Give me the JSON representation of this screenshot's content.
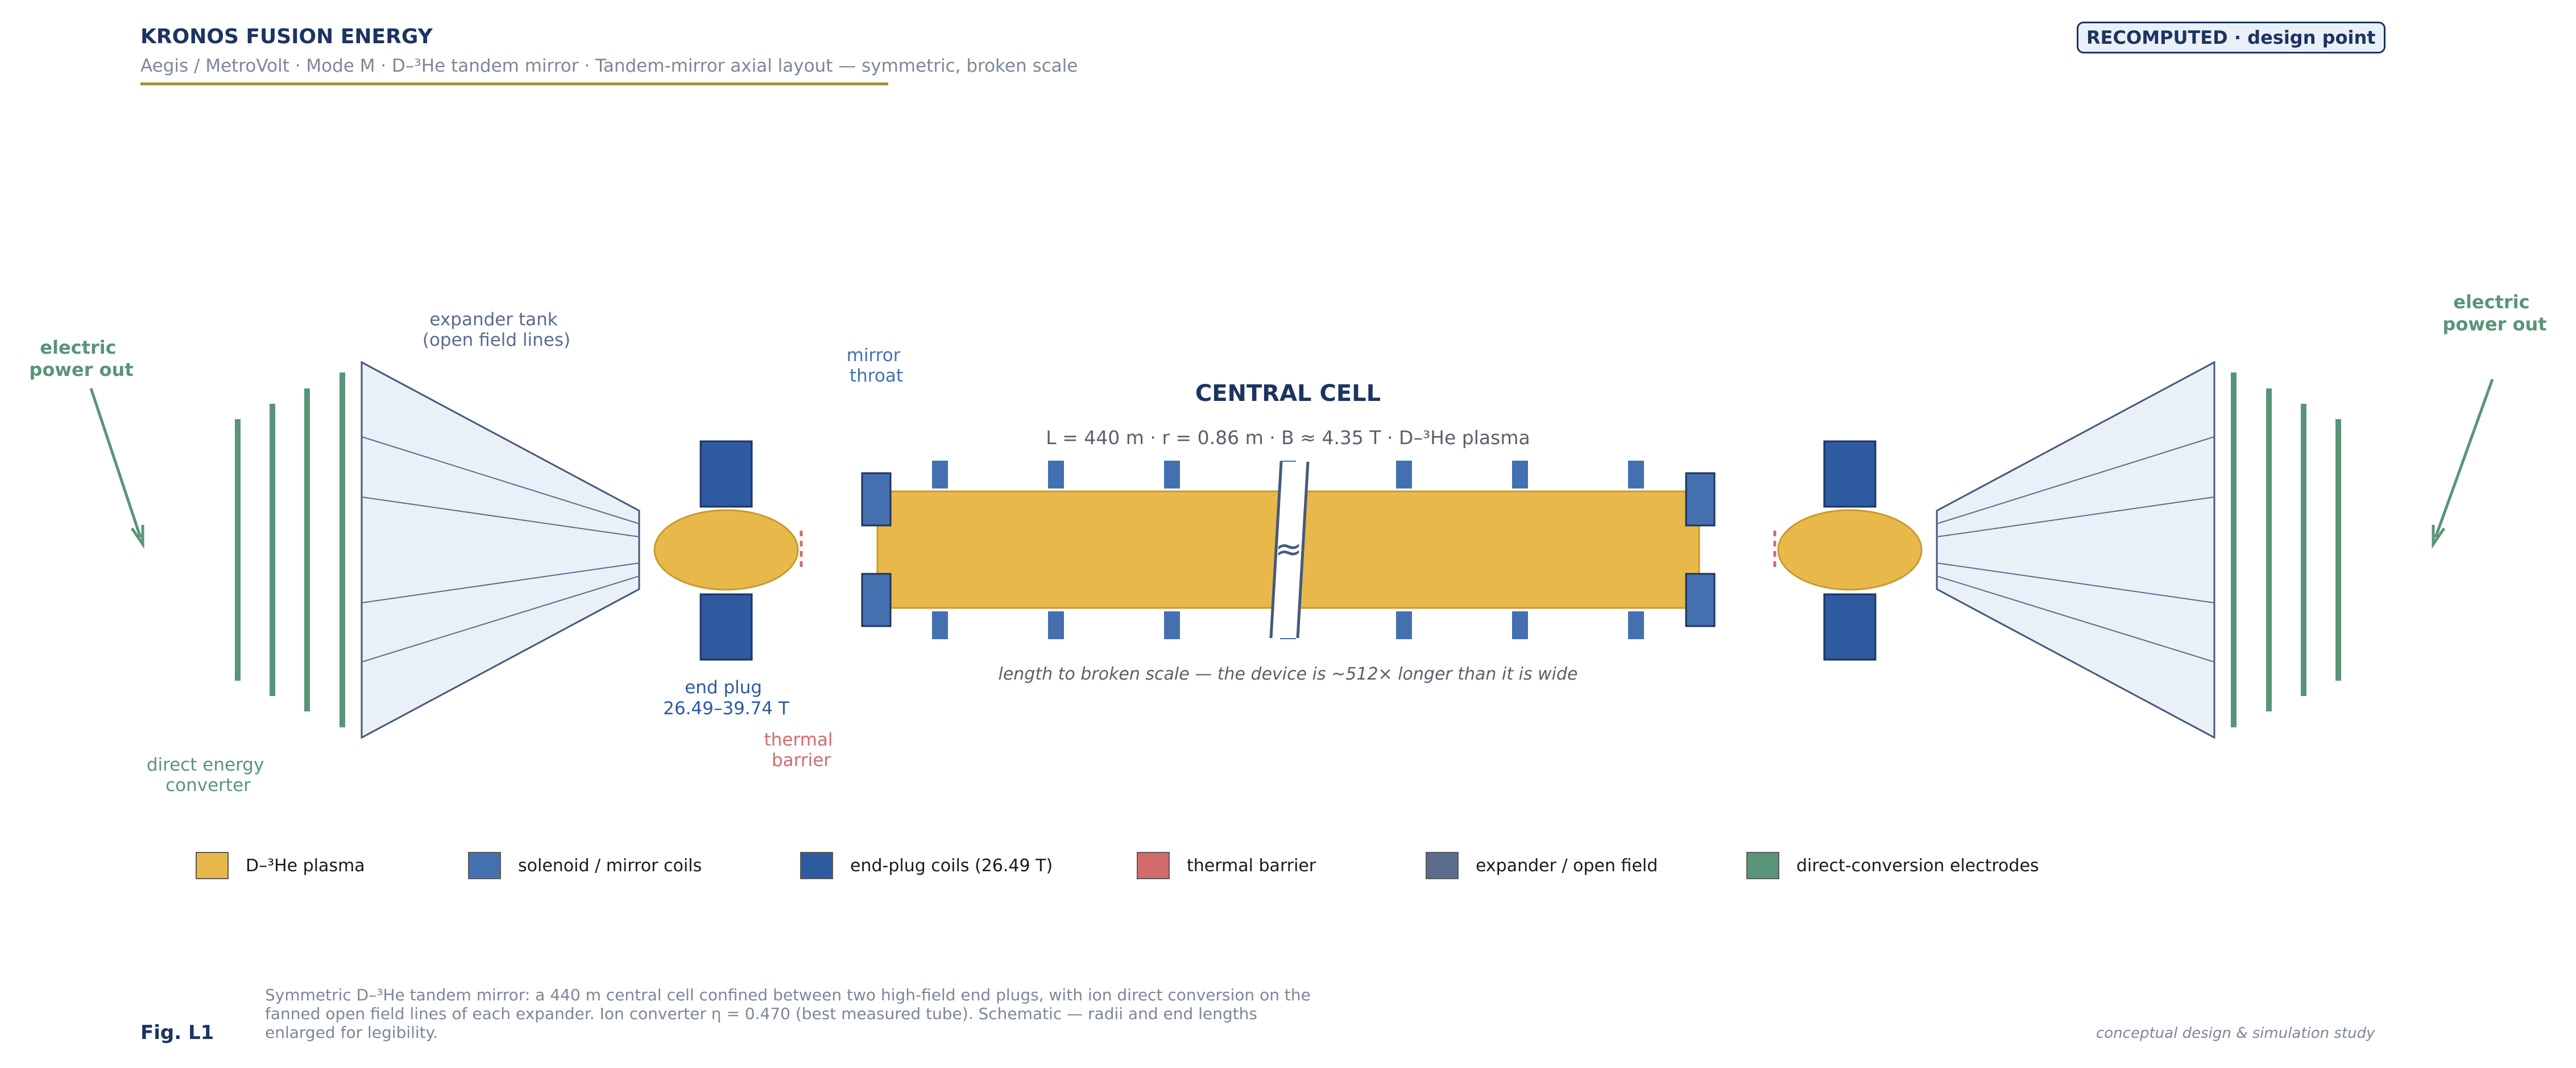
{
  "header": {
    "brand": "KRONOS FUSION ENERGY",
    "subtitle": "Aegis / MetroVolt  ·  Mode M  ·  D–³He tandem mirror   ·   Tandem-mirror axial layout — symmetric, broken scale",
    "badge": "RECOMPUTED · design point"
  },
  "labels": {
    "electric_out_left_1": "electric",
    "electric_out_left_2": "power out",
    "electric_out_right_1": "electric",
    "electric_out_right_2": "power out",
    "expander_tank_1": "expander tank",
    "expander_tank_2": "(open field lines)",
    "mirror_throat_1": "mirror",
    "mirror_throat_2": "throat",
    "central_cell": "CENTRAL CELL",
    "central_params": "L = 440 m   ·   r = 0.86 m   ·   B ≈ 4.35 T   ·   D–³He plasma",
    "break_mark": "≈",
    "scale_note": "length to broken scale — the device is ~512× longer than it is wide",
    "end_plug_1": "end plug",
    "end_plug_2": "26.49–39.74 T",
    "thermal_barrier_1": "thermal",
    "thermal_barrier_2": "barrier",
    "dec_1": "direct energy",
    "dec_2": "converter"
  },
  "legend": [
    {
      "label": "D–³He plasma",
      "color": "#e8b84b"
    },
    {
      "label": "solenoid / mirror coils",
      "color": "#4470b0"
    },
    {
      "label": "end-plug coils (26.49 T)",
      "color": "#2e5aa0"
    },
    {
      "label": "thermal barrier",
      "color": "#d46b6b"
    },
    {
      "label": "expander / open field",
      "color": "#5b6b8c"
    },
    {
      "label": "direct-conversion electrodes",
      "color": "#5a9478"
    }
  ],
  "footer": {
    "fig_label": "Fig. L1",
    "caption": "Symmetric D–³He tandem mirror: a 440 m central cell confined between two high-field end plugs, with ion direct conversion on the fanned open field lines of each expander. Ion converter η = 0.470 (best measured tube). Schematic — radii and end lengths enlarged for legibility.",
    "note": "conceptual design & simulation study"
  },
  "colors": {
    "plasma": "#e8b84b",
    "solenoid": "#4470b0",
    "endplug": "#2e5aa0",
    "thermal": "#d46b6b",
    "expander": "#5b6b8c",
    "electrode": "#5a9478",
    "navy": "#1d3461"
  }
}
